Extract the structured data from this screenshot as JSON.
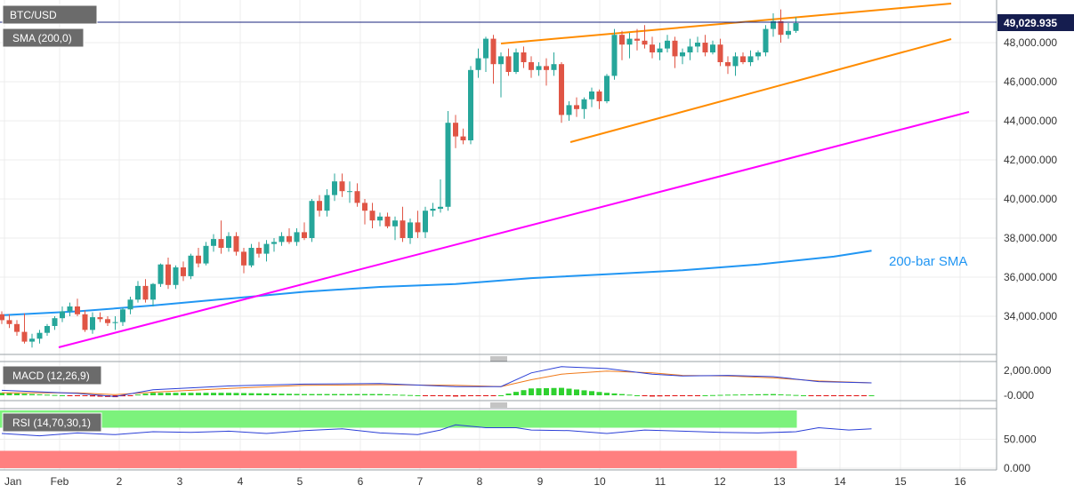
{
  "symbol_label": "BTC/USD",
  "sma_label": "SMA (200,0)",
  "sma_annotation": "200-bar SMA",
  "macd_label": "MACD (12,26,9)",
  "rsi_label": "RSI (14,70,30,1)",
  "current_price_label": "49,029.935",
  "colors": {
    "bull": "#26a69a",
    "bear": "#e05545",
    "sma": "#2196f3",
    "channel": "#ff8c00",
    "support": "#ff00ff",
    "macd_line": "#2b3fd6",
    "signal_line": "#f07a1a",
    "rsi_line": "#2b3fd6",
    "overbought_zone": "#7cf27c",
    "oversold_zone": "#ff8080"
  },
  "chart_data": [
    {
      "type": "candlestick",
      "title": "BTC/USD",
      "x_ticks": [
        "Jan",
        "Feb",
        "2",
        "3",
        "4",
        "5",
        "6",
        "7",
        "8",
        "9",
        "10",
        "11",
        "12",
        "13",
        "14",
        "15",
        "16"
      ],
      "y_ticks": [
        "34,000.000",
        "36,000.000",
        "38,000.000",
        "40,000.000",
        "42,000.000",
        "44,000.000",
        "46,000.000",
        "48,000.000"
      ],
      "ylim": [
        32000,
        49900
      ],
      "current_price": 49029.935,
      "grid": true,
      "ohlc": [
        [
          34100,
          34250,
          33600,
          33800
        ],
        [
          33800,
          34100,
          33400,
          33600
        ],
        [
          33600,
          33800,
          33000,
          33200
        ],
        [
          33200,
          34150,
          32600,
          32700
        ],
        [
          32700,
          33100,
          32400,
          32850
        ],
        [
          32850,
          33300,
          32600,
          33150
        ],
        [
          33150,
          33600,
          33000,
          33500
        ],
        [
          33500,
          34000,
          33300,
          33900
        ],
        [
          33900,
          34500,
          33700,
          34250
        ],
        [
          34250,
          34700,
          34000,
          34500
        ],
        [
          34500,
          34900,
          34000,
          34100
        ],
        [
          34100,
          34300,
          33200,
          33300
        ],
        [
          33300,
          34200,
          33100,
          33950
        ],
        [
          33950,
          34200,
          33700,
          33850
        ],
        [
          33850,
          34000,
          33500,
          33650
        ],
        [
          33650,
          34000,
          33300,
          33700
        ],
        [
          33700,
          34450,
          33500,
          34350
        ],
        [
          34350,
          35000,
          34100,
          34850
        ],
        [
          34850,
          35800,
          34700,
          35550
        ],
        [
          35550,
          35900,
          34700,
          34850
        ],
        [
          34850,
          35700,
          34500,
          35650
        ],
        [
          35650,
          36700,
          35500,
          36650
        ],
        [
          36650,
          37000,
          35400,
          35600
        ],
        [
          35600,
          36600,
          35400,
          36500
        ],
        [
          36500,
          36800,
          35800,
          36050
        ],
        [
          36050,
          37200,
          35900,
          37100
        ],
        [
          37100,
          37500,
          36500,
          36700
        ],
        [
          36700,
          37800,
          36600,
          37600
        ],
        [
          37600,
          38200,
          37300,
          37950
        ],
        [
          37950,
          38900,
          37200,
          37500
        ],
        [
          37500,
          38300,
          37300,
          38100
        ],
        [
          38100,
          38300,
          37100,
          37300
        ],
        [
          37300,
          37500,
          36200,
          36600
        ],
        [
          36600,
          37700,
          36500,
          37500
        ],
        [
          37500,
          37800,
          37000,
          37200
        ],
        [
          37200,
          37900,
          36800,
          37700
        ],
        [
          37700,
          38000,
          37300,
          37800
        ],
        [
          37800,
          38300,
          37600,
          38100
        ],
        [
          38100,
          38500,
          37700,
          37800
        ],
        [
          37800,
          38500,
          37600,
          38300
        ],
        [
          38300,
          38800,
          37900,
          38000
        ],
        [
          38000,
          40000,
          37800,
          39900
        ],
        [
          39900,
          40200,
          39100,
          39400
        ],
        [
          39400,
          40500,
          39100,
          40200
        ],
        [
          40200,
          41300,
          39900,
          40900
        ],
        [
          40900,
          41300,
          40100,
          40400
        ],
        [
          40400,
          40900,
          39800,
          40400
        ],
        [
          40400,
          40800,
          39600,
          39800
        ],
        [
          39800,
          40000,
          38700,
          39400
        ],
        [
          39400,
          39800,
          38500,
          38900
        ],
        [
          38900,
          39300,
          38600,
          39100
        ],
        [
          39100,
          39300,
          38500,
          38600
        ],
        [
          38600,
          39100,
          37900,
          38900
        ],
        [
          38900,
          39600,
          37800,
          38000
        ],
        [
          38000,
          39000,
          37700,
          38800
        ],
        [
          38800,
          39400,
          38000,
          38300
        ],
        [
          38300,
          39600,
          38000,
          39400
        ],
        [
          39400,
          39800,
          39100,
          39500
        ],
        [
          39500,
          41000,
          39300,
          39600
        ],
        [
          39600,
          44500,
          39400,
          43900
        ],
        [
          43900,
          44300,
          42600,
          43200
        ],
        [
          43200,
          43600,
          42800,
          43000
        ],
        [
          43000,
          46800,
          42800,
          46600
        ],
        [
          46600,
          47700,
          46200,
          47200
        ],
        [
          47200,
          48300,
          46500,
          48200
        ],
        [
          48200,
          48400,
          45900,
          46900
        ],
        [
          46900,
          47500,
          45200,
          47300
        ],
        [
          47300,
          47700,
          46300,
          46500
        ],
        [
          46500,
          47700,
          46400,
          47500
        ],
        [
          47500,
          47800,
          46700,
          47000
        ],
        [
          47000,
          47300,
          46200,
          46600
        ],
        [
          46600,
          47000,
          46300,
          46800
        ],
        [
          46800,
          47200,
          45800,
          46600
        ],
        [
          46600,
          47500,
          46300,
          46900
        ],
        [
          46900,
          47000,
          43900,
          44300
        ],
        [
          44300,
          45000,
          44000,
          44800
        ],
        [
          44800,
          45200,
          44200,
          44600
        ],
        [
          44600,
          45200,
          44100,
          45100
        ],
        [
          45100,
          45700,
          44700,
          45500
        ],
        [
          45500,
          45600,
          44600,
          45000
        ],
        [
          45000,
          46400,
          44900,
          46300
        ],
        [
          46300,
          48700,
          46100,
          48400
        ],
        [
          48400,
          48600,
          47100,
          47900
        ],
        [
          47900,
          48500,
          47200,
          48200
        ],
        [
          48200,
          48700,
          47600,
          48100
        ],
        [
          48100,
          48900,
          47700,
          47900
        ],
        [
          47900,
          48300,
          47200,
          47500
        ],
        [
          47500,
          48000,
          47100,
          47700
        ],
        [
          47700,
          48400,
          47500,
          48100
        ],
        [
          48100,
          48300,
          46700,
          47300
        ],
        [
          47300,
          47700,
          46900,
          47500
        ],
        [
          47500,
          48200,
          47100,
          47800
        ],
        [
          47800,
          48300,
          47500,
          48000
        ],
        [
          48000,
          48400,
          47300,
          47500
        ],
        [
          47500,
          48100,
          47400,
          47900
        ],
        [
          47900,
          48200,
          46800,
          47000
        ],
        [
          47000,
          47300,
          46400,
          46800
        ],
        [
          46800,
          47500,
          46300,
          47300
        ],
        [
          47300,
          47500,
          46900,
          47000
        ],
        [
          47000,
          47600,
          46800,
          47300
        ],
        [
          47300,
          47600,
          47100,
          47500
        ],
        [
          47500,
          48900,
          47300,
          48700
        ],
        [
          48700,
          49500,
          48300,
          49100
        ],
        [
          49100,
          49700,
          48000,
          48400
        ],
        [
          48400,
          49000,
          48200,
          48600
        ],
        [
          48600,
          49300,
          48500,
          49000
        ]
      ],
      "sma_200": [
        [
          0,
          34050
        ],
        [
          10,
          34250
        ],
        [
          20,
          34550
        ],
        [
          30,
          34900
        ],
        [
          40,
          35250
        ],
        [
          50,
          35500
        ],
        [
          60,
          35650
        ],
        [
          70,
          35950
        ],
        [
          80,
          36150
        ],
        [
          90,
          36350
        ],
        [
          100,
          36650
        ],
        [
          110,
          37050
        ],
        [
          115,
          37350
        ]
      ],
      "annotations": [
        "200-bar SMA"
      ]
    },
    {
      "type": "line",
      "title": "MACD (12,26,9)",
      "y_ticks": [
        "2,000.000",
        "-0.000"
      ],
      "ylim": [
        -700,
        3000
      ],
      "series": [
        {
          "values": [
            [
              0,
              400
            ],
            [
              10,
              150
            ],
            [
              15,
              -100
            ],
            [
              20,
              450
            ],
            [
              30,
              750
            ],
            [
              40,
              900
            ],
            [
              50,
              950
            ],
            [
              60,
              700
            ],
            [
              66,
              700
            ],
            [
              70,
              1800
            ],
            [
              74,
              2300
            ],
            [
              80,
              2150
            ],
            [
              86,
              1700
            ],
            [
              90,
              1550
            ],
            [
              96,
              1600
            ],
            [
              102,
              1500
            ],
            [
              108,
              1100
            ],
            [
              115,
              1000
            ]
          ]
        },
        {
          "values": [
            [
              0,
              200
            ],
            [
              10,
              200
            ],
            [
              15,
              50
            ],
            [
              20,
              250
            ],
            [
              30,
              550
            ],
            [
              40,
              800
            ],
            [
              50,
              850
            ],
            [
              60,
              800
            ],
            [
              66,
              700
            ],
            [
              70,
              1250
            ],
            [
              74,
              1700
            ],
            [
              80,
              1950
            ],
            [
              86,
              1800
            ],
            [
              90,
              1600
            ],
            [
              96,
              1550
            ],
            [
              102,
              1400
            ],
            [
              108,
              1150
            ],
            [
              115,
              1000
            ]
          ]
        }
      ]
    },
    {
      "type": "line",
      "title": "RSI (14,70,30,1)",
      "y_ticks": [
        "50.000",
        "0.000"
      ],
      "ylim": [
        0,
        100
      ],
      "overbought": 70,
      "oversold": 30,
      "series": [
        {
          "values": [
            [
              0,
              60
            ],
            [
              5,
              56
            ],
            [
              10,
              61
            ],
            [
              15,
              58
            ],
            [
              20,
              63
            ],
            [
              25,
              62
            ],
            [
              30,
              64
            ],
            [
              35,
              60
            ],
            [
              40,
              65
            ],
            [
              45,
              68
            ],
            [
              50,
              61
            ],
            [
              55,
              58
            ],
            [
              58,
              66
            ],
            [
              60,
              75
            ],
            [
              64,
              70
            ],
            [
              68,
              70
            ],
            [
              70,
              66
            ],
            [
              75,
              65
            ],
            [
              80,
              60
            ],
            [
              85,
              66
            ],
            [
              90,
              64
            ],
            [
              95,
              62
            ],
            [
              100,
              61
            ],
            [
              105,
              63
            ],
            [
              108,
              70
            ],
            [
              112,
              66
            ],
            [
              115,
              68
            ]
          ]
        }
      ]
    }
  ]
}
